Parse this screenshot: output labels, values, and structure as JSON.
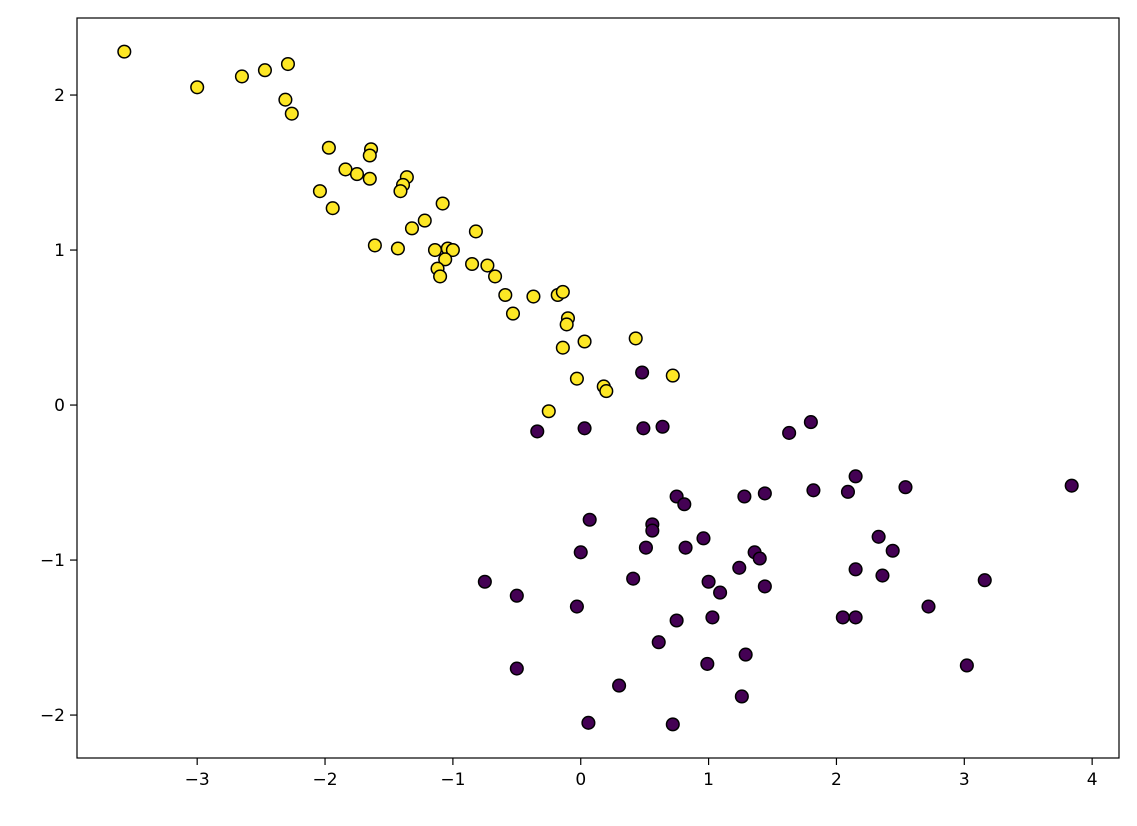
{
  "chart_data": {
    "type": "scatter",
    "xlim": [
      -3.94,
      4.21
    ],
    "ylim": [
      -2.277,
      2.497
    ],
    "xticks": [
      {
        "value": -3,
        "label": "−3"
      },
      {
        "value": -2,
        "label": "−2"
      },
      {
        "value": -1,
        "label": "−1"
      },
      0,
      1,
      2,
      3,
      4
    ],
    "yticks": [
      {
        "value": -2,
        "label": "−2"
      },
      {
        "value": -1,
        "label": "−1"
      },
      0,
      1,
      2
    ],
    "series": [
      {
        "color": "#fde725",
        "x": [
          -3.57,
          -3.0,
          -2.65,
          -2.47,
          -2.29,
          -2.31,
          -2.26,
          -1.97,
          -1.64,
          -1.65,
          -1.84,
          -1.75,
          -1.65,
          -1.36,
          -1.39,
          -1.41,
          -2.04,
          -1.94,
          -1.08,
          -1.22,
          -1.32,
          -0.82,
          -1.61,
          -1.43,
          -1.14,
          -1.04,
          -1.0,
          -1.06,
          -0.85,
          -0.73,
          -1.12,
          -1.1,
          -0.67,
          -0.59,
          -0.37,
          -0.18,
          -0.14,
          -0.53,
          -0.1,
          -0.11,
          0.43,
          0.03,
          -0.14,
          0.72,
          -0.03,
          0.18,
          0.2,
          -0.25
        ],
        "values": [
          2.28,
          2.05,
          2.12,
          2.16,
          2.2,
          1.97,
          1.88,
          1.66,
          1.65,
          1.61,
          1.52,
          1.49,
          1.46,
          1.47,
          1.42,
          1.38,
          1.38,
          1.27,
          1.3,
          1.19,
          1.14,
          1.12,
          1.03,
          1.01,
          1.0,
          1.01,
          1.0,
          0.94,
          0.91,
          0.9,
          0.88,
          0.83,
          0.83,
          0.71,
          0.7,
          0.71,
          0.73,
          0.59,
          0.56,
          0.52,
          0.43,
          0.41,
          0.37,
          0.19,
          0.17,
          0.12,
          0.09,
          -0.04
        ]
      },
      {
        "color": "#440154",
        "x": [
          0.48,
          -0.34,
          0.03,
          0.49,
          0.64,
          1.8,
          1.63,
          2.15,
          3.84,
          2.54,
          1.82,
          2.09,
          1.44,
          1.28,
          0.75,
          0.81,
          0.07,
          0.56,
          0.56,
          2.33,
          0.96,
          0.82,
          0.51,
          2.44,
          1.36,
          0.0,
          1.4,
          1.24,
          2.15,
          2.36,
          0.41,
          -0.75,
          1.0,
          3.16,
          1.44,
          1.09,
          -0.5,
          -0.03,
          2.72,
          1.03,
          2.05,
          2.15,
          0.75,
          0.61,
          1.29,
          0.99,
          3.02,
          -0.5,
          0.3,
          1.26,
          0.06,
          0.72
        ],
        "values": [
          0.21,
          -0.17,
          -0.15,
          -0.15,
          -0.14,
          -0.11,
          -0.18,
          -0.46,
          -0.52,
          -0.53,
          -0.55,
          -0.56,
          -0.57,
          -0.59,
          -0.59,
          -0.64,
          -0.74,
          -0.77,
          -0.81,
          -0.85,
          -0.86,
          -0.92,
          -0.92,
          -0.94,
          -0.95,
          -0.95,
          -0.99,
          -1.05,
          -1.06,
          -1.1,
          -1.12,
          -1.14,
          -1.14,
          -1.13,
          -1.17,
          -1.21,
          -1.23,
          -1.3,
          -1.3,
          -1.37,
          -1.37,
          -1.37,
          -1.39,
          -1.53,
          -1.61,
          -1.67,
          -1.68,
          -1.7,
          -1.81,
          -1.88,
          -2.05,
          -2.06
        ]
      }
    ]
  }
}
